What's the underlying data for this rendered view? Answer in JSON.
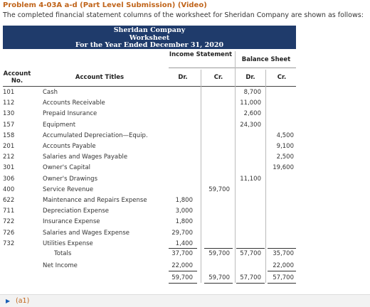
{
  "problem_title": "Problem 4-03A a-d (Part Level Submission) (Video)",
  "intro": "The completed financial statement columns of the worksheet for Sheridan Company are shown as follows:",
  "header": {
    "company": "Sheridan Company",
    "doc": "Worksheet",
    "period": "For the Year Ended December 31, 2020"
  },
  "columns": {
    "account_no": "Account No.",
    "account_titles": "Account Titles",
    "income_statement": "Income Statement",
    "balance_sheet": "Balance Sheet",
    "dr": "Dr.",
    "cr": "Cr."
  },
  "rows": [
    {
      "no": "101",
      "title": "Cash",
      "is_dr": "",
      "is_cr": "",
      "bs_dr": "8,700",
      "bs_cr": ""
    },
    {
      "no": "112",
      "title": "Accounts Receivable",
      "is_dr": "",
      "is_cr": "",
      "bs_dr": "11,000",
      "bs_cr": ""
    },
    {
      "no": "130",
      "title": "Prepaid Insurance",
      "is_dr": "",
      "is_cr": "",
      "bs_dr": "2,600",
      "bs_cr": ""
    },
    {
      "no": "157",
      "title": "Equipment",
      "is_dr": "",
      "is_cr": "",
      "bs_dr": "24,300",
      "bs_cr": ""
    },
    {
      "no": "158",
      "title": "Accumulated Depreciation—Equip.",
      "is_dr": "",
      "is_cr": "",
      "bs_dr": "",
      "bs_cr": "4,500"
    },
    {
      "no": "201",
      "title": "Accounts Payable",
      "is_dr": "",
      "is_cr": "",
      "bs_dr": "",
      "bs_cr": "9,100"
    },
    {
      "no": "212",
      "title": "Salaries and Wages Payable",
      "is_dr": "",
      "is_cr": "",
      "bs_dr": "",
      "bs_cr": "2,500"
    },
    {
      "no": "301",
      "title": "Owner's Capital",
      "is_dr": "",
      "is_cr": "",
      "bs_dr": "",
      "bs_cr": "19,600"
    },
    {
      "no": "306",
      "title": "Owner's Drawings",
      "is_dr": "",
      "is_cr": "",
      "bs_dr": "11,100",
      "bs_cr": ""
    },
    {
      "no": "400",
      "title": "Service Revenue",
      "is_dr": "",
      "is_cr": "59,700",
      "bs_dr": "",
      "bs_cr": ""
    },
    {
      "no": "622",
      "title": "Maintenance and Repairs Expense",
      "is_dr": "1,800",
      "is_cr": "",
      "bs_dr": "",
      "bs_cr": ""
    },
    {
      "no": "711",
      "title": "Depreciation Expense",
      "is_dr": "3,000",
      "is_cr": "",
      "bs_dr": "",
      "bs_cr": ""
    },
    {
      "no": "722",
      "title": "Insurance Expense",
      "is_dr": "1,800",
      "is_cr": "",
      "bs_dr": "",
      "bs_cr": ""
    },
    {
      "no": "726",
      "title": "Salaries and Wages Expense",
      "is_dr": "29,700",
      "is_cr": "",
      "bs_dr": "",
      "bs_cr": ""
    },
    {
      "no": "732",
      "title": "Utilities Expense",
      "is_dr": "1,400",
      "is_cr": "",
      "bs_dr": "",
      "bs_cr": ""
    }
  ],
  "totals": {
    "label": "Totals",
    "is_dr": "37,700",
    "is_cr": "59,700",
    "bs_dr": "57,700",
    "bs_cr": "35,700"
  },
  "net_income": {
    "label": "Net Income",
    "is_dr": "22,000",
    "is_cr": "",
    "bs_dr": "",
    "bs_cr": "22,000"
  },
  "grand": {
    "is_dr": "59,700",
    "is_cr": "59,700",
    "bs_dr": "57,700",
    "bs_cr": "57,700"
  },
  "footer": {
    "part_label": "(a1)"
  }
}
